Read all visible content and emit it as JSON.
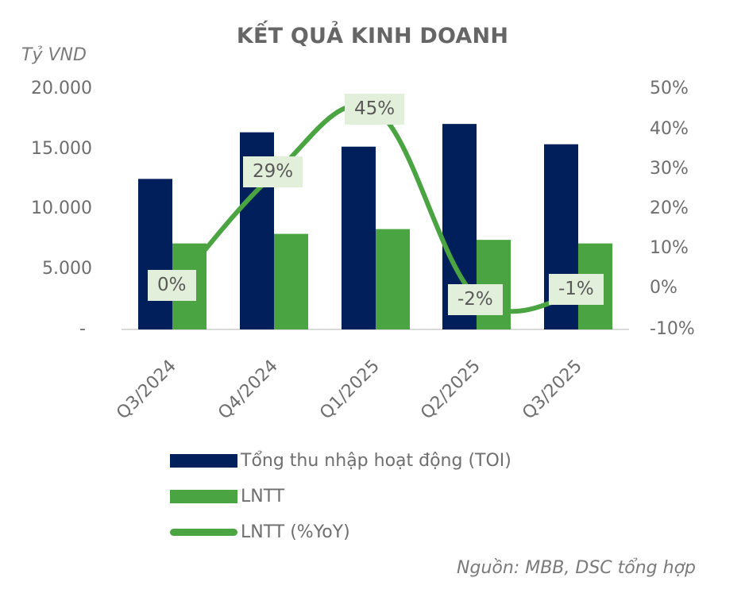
{
  "title": "KẾT QUẢ KINH DOANH",
  "unit_label": "Tỷ VND",
  "left_axis": {
    "ticks": [
      "20.000",
      "15.000",
      "10.000",
      "5.000",
      "-"
    ]
  },
  "right_axis": {
    "ticks": [
      "50%",
      "40%",
      "30%",
      "20%",
      "10%",
      "0%",
      "-10%"
    ]
  },
  "colors": {
    "toi": "#001f5b",
    "lntt": "#4aa441",
    "line": "#4aa441",
    "label_bg": "#e2efda"
  },
  "legend": {
    "toi": "Tổng thu nhập hoạt động (TOI)",
    "lntt": "LNTT",
    "yoy": "LNTT (%YoY)"
  },
  "data_labels": [
    "0%",
    "29%",
    "45%",
    "-2%",
    "-1%"
  ],
  "x_labels": [
    "Q3/2024",
    "Q4/2024",
    "Q1/2025",
    "Q2/2025",
    "Q3/2025"
  ],
  "source": "Nguồn: MBB, DSC tổng hợp",
  "chart_data": {
    "type": "bar",
    "title": "KẾT QUẢ KINH DOANH",
    "xlabel": "",
    "ylabel": "Tỷ VND",
    "y2label": "%YoY",
    "categories": [
      "Q3/2024",
      "Q4/2024",
      "Q1/2025",
      "Q2/2025",
      "Q3/2025"
    ],
    "series": [
      {
        "name": "Tổng thu nhập hoạt động (TOI)",
        "type": "bar",
        "axis": "left",
        "values": [
          12600,
          16500,
          15300,
          17200,
          15500
        ]
      },
      {
        "name": "LNTT",
        "type": "bar",
        "axis": "left",
        "values": [
          7200,
          8000,
          8400,
          7500,
          7200
        ]
      },
      {
        "name": "LNTT (%YoY)",
        "type": "line",
        "axis": "right",
        "values": [
          0,
          29,
          45,
          -2,
          -1
        ],
        "unit": "%"
      }
    ],
    "ylim": [
      0,
      20000
    ],
    "y2lim": [
      -10,
      50
    ],
    "legend_position": "bottom",
    "grid": false
  }
}
